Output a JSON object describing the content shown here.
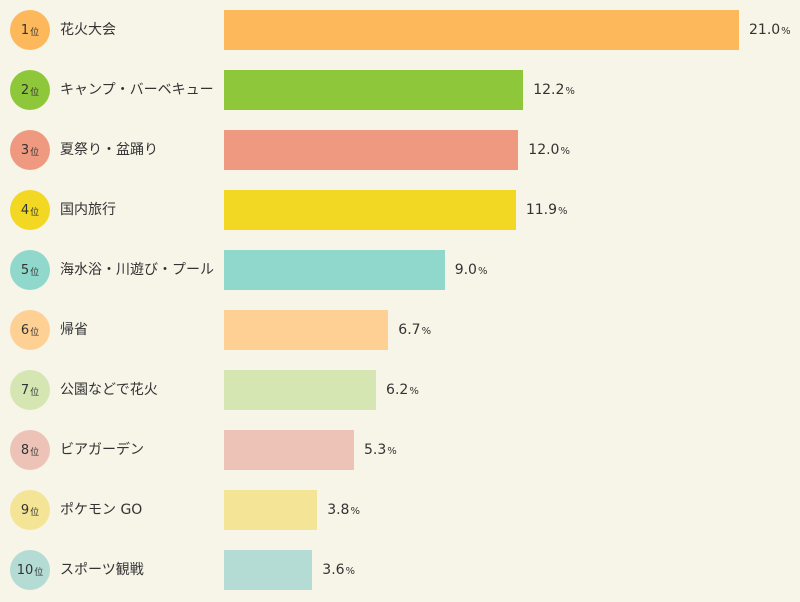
{
  "chart_data": {
    "type": "bar",
    "orientation": "horizontal",
    "rank_suffix": "位",
    "unit": "%",
    "xlim": [
      0,
      21.0
    ],
    "grid": false,
    "title": "",
    "xlabel": "",
    "ylabel": "",
    "categories": [
      "花火大会",
      "キャンプ・バーベキュー",
      "夏祭り・盆踊り",
      "国内旅行",
      "海水浴・川遊び・プール",
      "帰省",
      "公園などで花火",
      "ビアガーデン",
      "ポケモン GO",
      "スポーツ観戦"
    ],
    "ranks": [
      "1",
      "2",
      "3",
      "4",
      "5",
      "6",
      "7",
      "8",
      "9",
      "10"
    ],
    "values": [
      21.0,
      12.2,
      12.0,
      11.9,
      9.0,
      6.7,
      6.2,
      5.3,
      3.8,
      3.6
    ],
    "value_labels": [
      "21.0",
      "12.2",
      "12.0",
      "11.9",
      "9.0",
      "6.7",
      "6.2",
      "5.3",
      "3.8",
      "3.6"
    ],
    "colors": [
      "#fdb85c",
      "#8fc73a",
      "#ef9a80",
      "#f2d823",
      "#90d8cc",
      "#fed093",
      "#d6e6b3",
      "#eec3b7",
      "#f4e495",
      "#b5dbd5"
    ]
  }
}
